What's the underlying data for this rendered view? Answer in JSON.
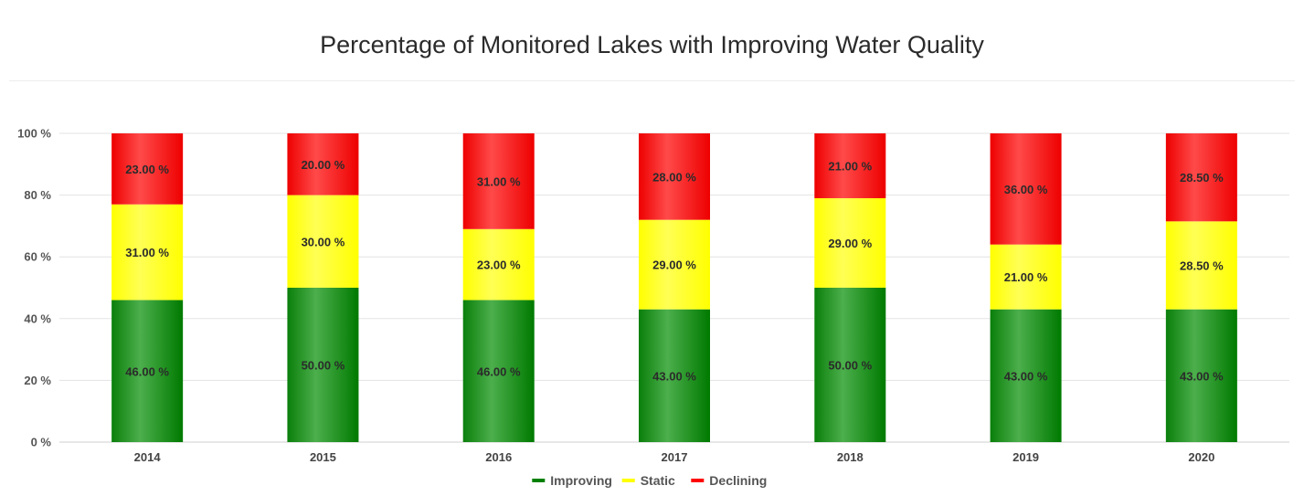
{
  "chart_data": {
    "type": "bar",
    "stacked": true,
    "title": "Percentage of Monitored Lakes with Improving Water Quality",
    "categories": [
      "2014",
      "2015",
      "2016",
      "2017",
      "2018",
      "2019",
      "2020"
    ],
    "ylim": [
      0,
      100
    ],
    "yticks": [
      0,
      20,
      40,
      60,
      80,
      100
    ],
    "ytick_suffix": " %",
    "label_format": "2dp_percent",
    "grid": true,
    "legend_position": "bottom-center",
    "series": [
      {
        "name": "Improving",
        "color": "#008000",
        "values": [
          46,
          50,
          46,
          43,
          50,
          43,
          43
        ]
      },
      {
        "name": "Static",
        "color": "#ffff00",
        "values": [
          31,
          30,
          23,
          29,
          29,
          21,
          28.5
        ]
      },
      {
        "name": "Declining",
        "color": "#ff0000",
        "values": [
          23,
          20,
          31,
          28,
          21,
          36,
          28.5
        ]
      }
    ]
  }
}
